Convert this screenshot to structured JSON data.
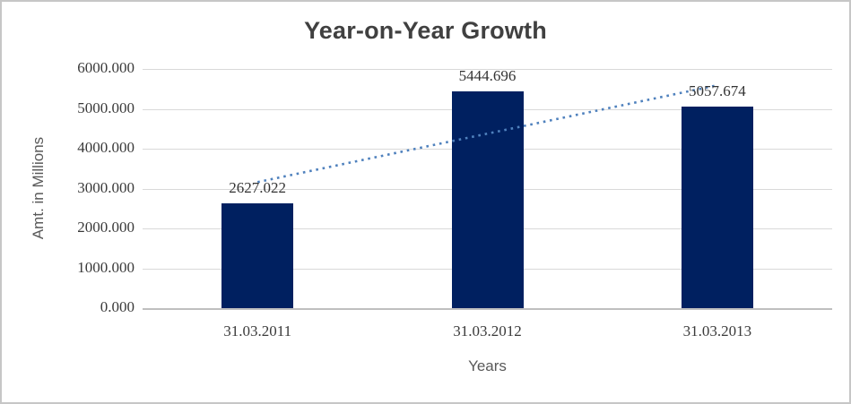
{
  "chart_data": {
    "type": "bar",
    "title": "Year-on-Year Growth",
    "xlabel": "Years",
    "ylabel": "Amt. in Millions",
    "categories": [
      "31.03.2011",
      "31.03.2012",
      "31.03.2013"
    ],
    "values": [
      2627.022,
      5444.696,
      5057.674
    ],
    "data_labels": [
      "2627.022",
      "5444.696",
      "5057.674"
    ],
    "ylim": [
      0,
      6000
    ],
    "ytick_step": 1000,
    "ytick_labels": [
      "6000.000",
      "5000.000",
      "4000.000",
      "3000.000",
      "2000.000",
      "1000.000",
      "0.000"
    ],
    "ytick_values": [
      6000,
      5000,
      4000,
      3000,
      2000,
      1000,
      0
    ],
    "grid": true,
    "legend": "none",
    "trendline": {
      "type": "linear",
      "style": "dotted",
      "values_at_categories": [
        3161.17,
        4376.46,
        5591.76
      ]
    },
    "colors": {
      "bar": "#002060",
      "trendline": "#4f81bd",
      "gridline": "#d9d9d9",
      "axis_line": "#bfbfbf",
      "title_text": "#404040",
      "tick_text": "#3a3a3a",
      "axis_title_text": "#595959"
    }
  }
}
